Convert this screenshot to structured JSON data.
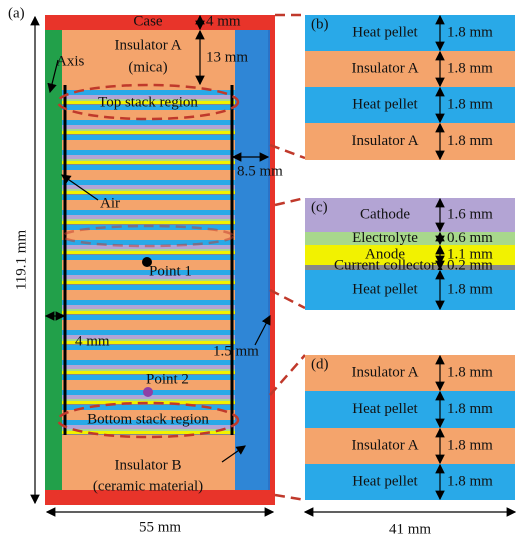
{
  "panel_a": {
    "label": "(a)",
    "case": "Case",
    "case_thickness": "4 mm",
    "insulator_top": "Insulator A",
    "insulator_top_material": "(mica)",
    "insulator_top_thickness": "13 mm",
    "axis": "Axis",
    "top_region": "Top stack region",
    "gap_width": "8.5 mm",
    "air": "Air",
    "height": "119.1 mm",
    "point_1": "Point 1",
    "axis_width": "4 mm",
    "wall": "1.5 mm",
    "point_2": "Point 2",
    "bottom_region": "Bottom stack region",
    "insulator_bottom": "Insulator B",
    "insulator_bottom_material": "(ceramic material)",
    "width": "55 mm"
  },
  "panel_b": {
    "label": "(b)",
    "layers": [
      {
        "name": "Heat pellet",
        "thickness": "1.8 mm"
      },
      {
        "name": "Insulator A",
        "thickness": "1.8 mm"
      },
      {
        "name": "Heat pellet",
        "thickness": "1.8 mm"
      },
      {
        "name": "Insulator A",
        "thickness": "1.8 mm"
      }
    ]
  },
  "panel_c": {
    "label": "(c)",
    "layers": [
      {
        "name": "Cathode",
        "thickness": "1.6 mm"
      },
      {
        "name": "Electrolyte",
        "thickness": "0.6 mm"
      },
      {
        "name": "Anode",
        "thickness": "1.1 mm"
      },
      {
        "name": "Current collector",
        "thickness": "0.2 mm"
      },
      {
        "name": "Heat pellet",
        "thickness": "1.8 mm"
      }
    ]
  },
  "panel_d": {
    "label": "(d)",
    "layers": [
      {
        "name": "Insulator A",
        "thickness": "1.8 mm"
      },
      {
        "name": "Heat pellet",
        "thickness": "1.8 mm"
      },
      {
        "name": "Insulator A",
        "thickness": "1.8 mm"
      },
      {
        "name": "Heat pellet",
        "thickness": "1.8 mm"
      }
    ]
  },
  "panel_width": "41 mm"
}
